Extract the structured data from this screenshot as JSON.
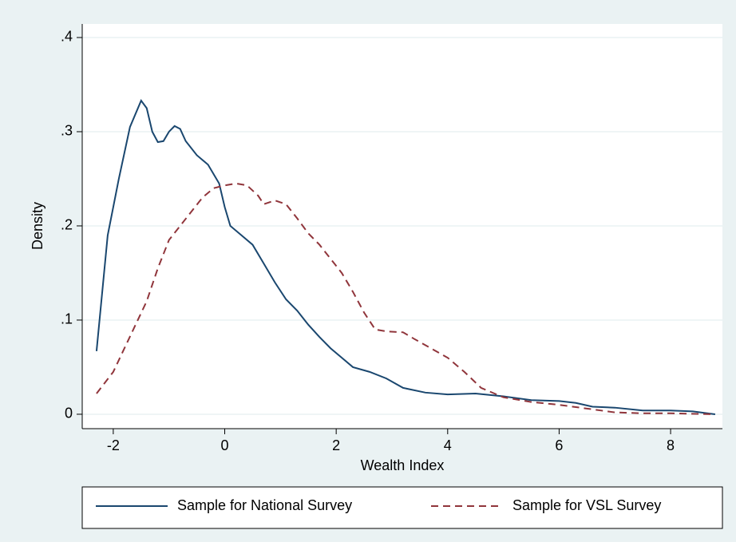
{
  "chart_data": {
    "type": "line",
    "xlabel": "Wealth Index",
    "ylabel": "Density",
    "xlim": [
      -2.557,
      8.93
    ],
    "ylim": [
      -0.0153,
      0.4144
    ],
    "xticks": [
      -2,
      0,
      2,
      4,
      6,
      8
    ],
    "yticks": [
      0,
      {
        "value": 0.1,
        "label": ".1"
      },
      {
        "value": 0.2,
        "label": ".2"
      },
      {
        "value": 0.3,
        "label": ".3"
      },
      {
        "value": 0.4,
        "label": ".4"
      }
    ],
    "grid": true,
    "legend": "bottom",
    "series": [
      {
        "name": "Sample for National Survey",
        "color": "#1a476f",
        "dash": "solid",
        "x": [
          -2.3,
          -2.1,
          -1.9,
          -1.7,
          -1.5,
          -1.4,
          -1.3,
          -1.2,
          -1.1,
          -1.0,
          -0.9,
          -0.8,
          -0.7,
          -0.5,
          -0.3,
          -0.1,
          0.0,
          0.1,
          0.3,
          0.5,
          0.7,
          0.9,
          1.1,
          1.3,
          1.5,
          1.7,
          1.9,
          2.1,
          2.3,
          2.6,
          2.9,
          3.2,
          3.6,
          4.0,
          4.5,
          5.0,
          5.5,
          6.0,
          6.3,
          6.6,
          7.0,
          7.5,
          8.0,
          8.4,
          8.8
        ],
        "values": [
          0.067,
          0.19,
          0.25,
          0.305,
          0.333,
          0.325,
          0.3,
          0.289,
          0.29,
          0.3,
          0.306,
          0.303,
          0.29,
          0.275,
          0.265,
          0.245,
          0.22,
          0.2,
          0.19,
          0.18,
          0.16,
          0.14,
          0.122,
          0.11,
          0.095,
          0.082,
          0.07,
          0.06,
          0.05,
          0.045,
          0.038,
          0.028,
          0.023,
          0.021,
          0.022,
          0.019,
          0.015,
          0.014,
          0.012,
          0.008,
          0.007,
          0.004,
          0.004,
          0.003,
          0.0
        ]
      },
      {
        "name": "Sample for VSL Survey",
        "color": "#90353b",
        "dash": "dashed",
        "x": [
          -2.3,
          -2.0,
          -1.8,
          -1.6,
          -1.4,
          -1.2,
          -1.0,
          -0.8,
          -0.6,
          -0.4,
          -0.2,
          0.0,
          0.2,
          0.4,
          0.6,
          0.7,
          0.9,
          1.1,
          1.3,
          1.5,
          1.7,
          1.9,
          2.1,
          2.3,
          2.5,
          2.7,
          2.9,
          3.2,
          3.4,
          3.7,
          4.0,
          4.3,
          4.6,
          5.0,
          5.5,
          6.0,
          6.5,
          7.0,
          7.5,
          8.0,
          8.8
        ],
        "values": [
          0.022,
          0.045,
          0.07,
          0.095,
          0.12,
          0.155,
          0.185,
          0.2,
          0.215,
          0.23,
          0.24,
          0.243,
          0.245,
          0.243,
          0.232,
          0.223,
          0.227,
          0.223,
          0.208,
          0.192,
          0.18,
          0.165,
          0.15,
          0.13,
          0.108,
          0.09,
          0.088,
          0.087,
          0.08,
          0.07,
          0.06,
          0.045,
          0.028,
          0.018,
          0.013,
          0.01,
          0.006,
          0.002,
          0.001,
          0.001,
          0.0
        ]
      }
    ]
  }
}
